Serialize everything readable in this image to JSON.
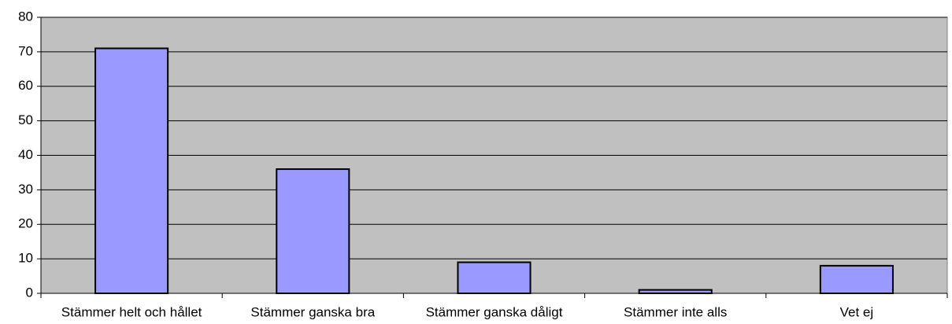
{
  "chart_data": {
    "type": "bar",
    "categories": [
      "Stämmer helt och hållet",
      "Stämmer ganska bra",
      "Stämmer ganska dåligt",
      "Stämmer inte alls",
      "Vet ej"
    ],
    "values": [
      71,
      36,
      9,
      1,
      8
    ],
    "color": "#9999ff",
    "ylim": [
      0,
      80
    ],
    "yticks": [
      0,
      10,
      20,
      30,
      40,
      50,
      60,
      70,
      80
    ],
    "grid": true
  }
}
